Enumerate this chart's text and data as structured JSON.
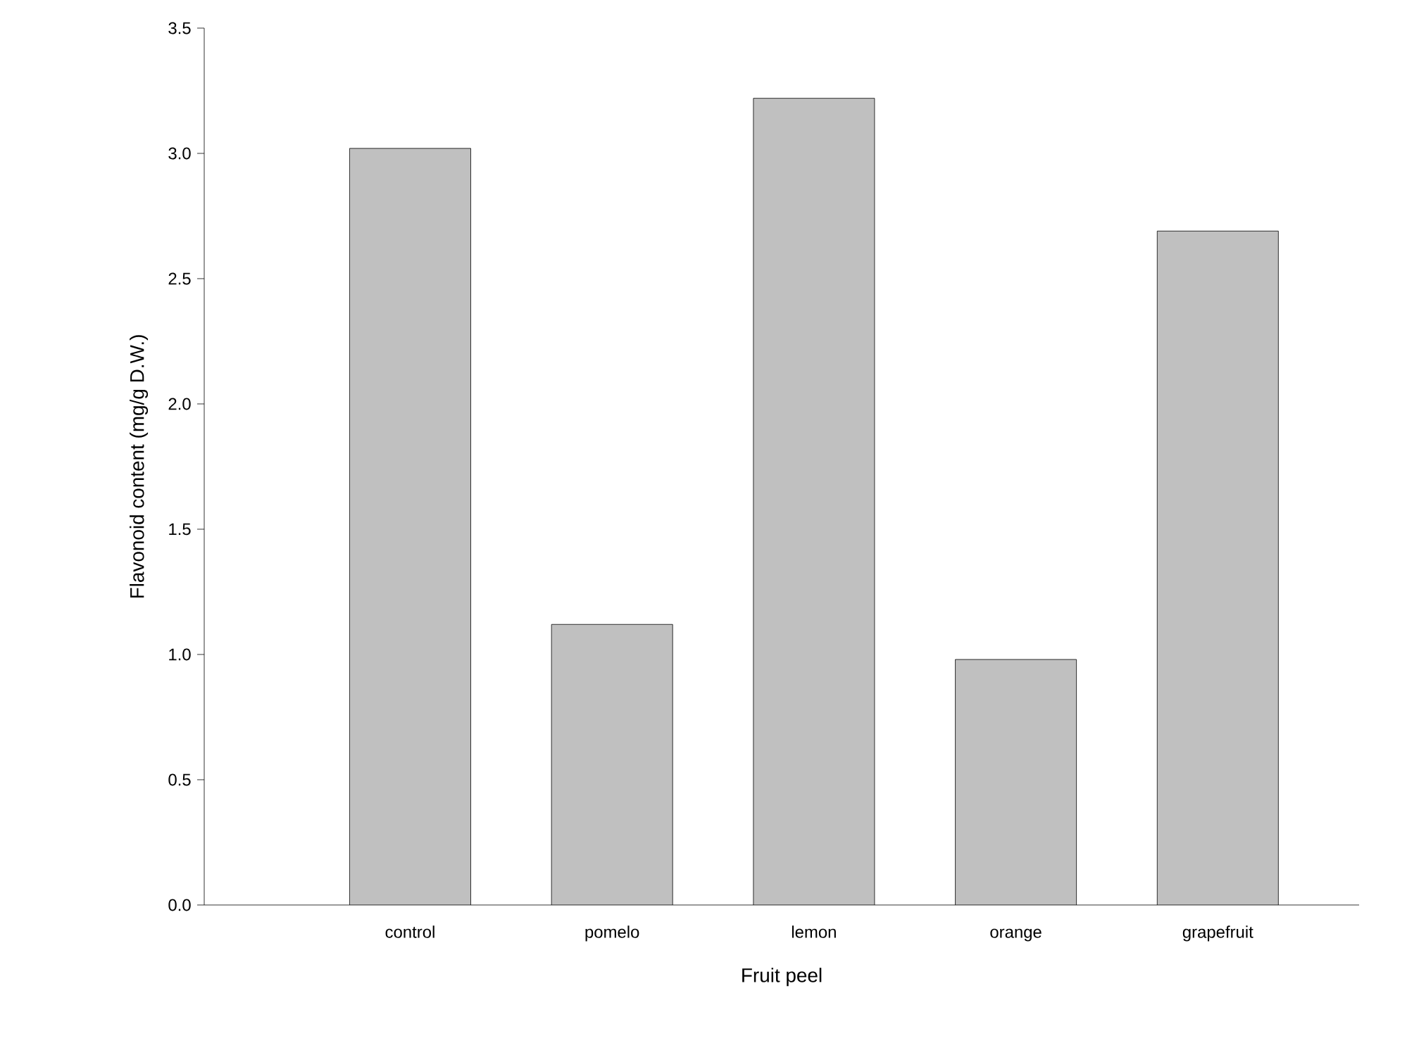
{
  "chart_data": {
    "type": "bar",
    "xlabel": "Fruit peel",
    "ylabel": "Flavonoid content (mg/g D.W.)",
    "categories": [
      "control",
      "pomelo",
      "lemon",
      "orange",
      "grapefruit"
    ],
    "values": [
      3.02,
      1.12,
      3.22,
      0.98,
      2.69
    ],
    "color": "#c0c0c0",
    "ylim": [
      0,
      3.5
    ],
    "yticks": [
      {
        "value": 0,
        "label": "0.0"
      },
      {
        "value": 0.5,
        "label": "0.5"
      },
      {
        "value": 1,
        "label": "1.0"
      },
      {
        "value": 1.5,
        "label": "1.5"
      },
      {
        "value": 2,
        "label": "2.0"
      },
      {
        "value": 2.5,
        "label": "2.5"
      },
      {
        "value": 3,
        "label": "3.0"
      },
      {
        "value": 3.5,
        "label": "3.5"
      }
    ]
  }
}
